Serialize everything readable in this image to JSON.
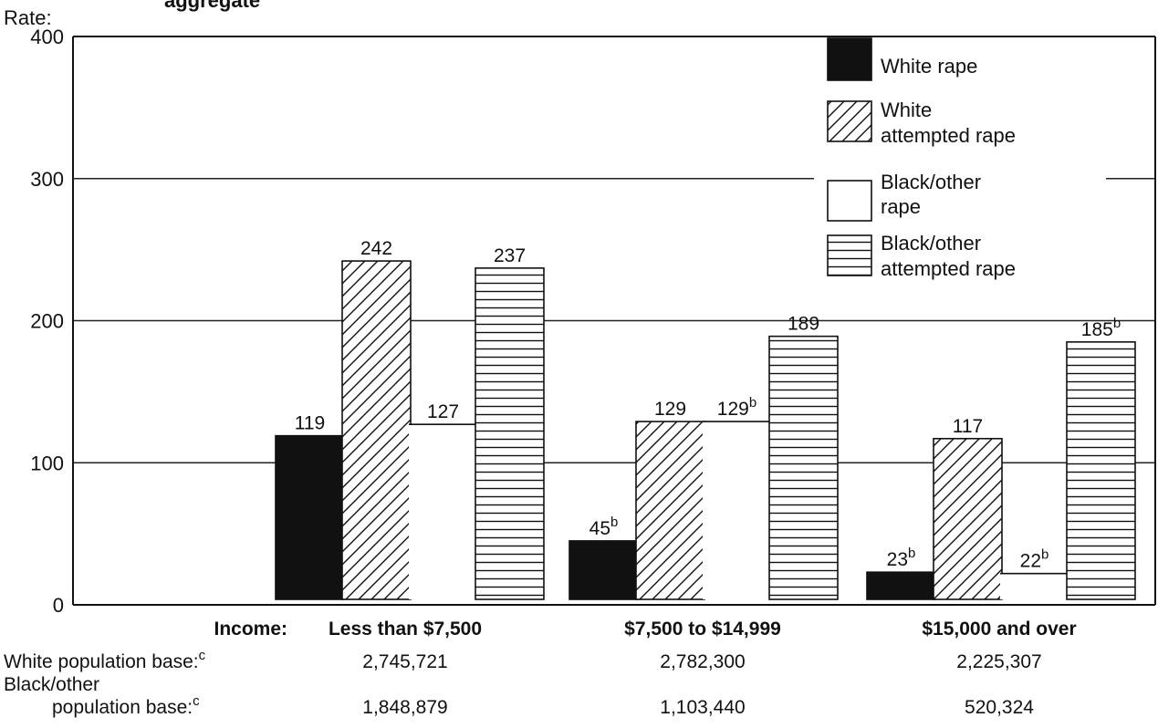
{
  "chart_data": {
    "type": "bar",
    "title_fragment": "aggregate",
    "ylabel": "Rate:",
    "ylim": [
      0,
      400
    ],
    "yticks": [
      "0",
      "100",
      "200",
      "300",
      "400"
    ],
    "grid": "horizontal",
    "legend_position": "top-right",
    "xlabel": "Income:",
    "categories": [
      "Less than $7,500",
      "$7,500 to $14,999",
      "$15,000 and over"
    ],
    "series": [
      {
        "name": "White rape",
        "pattern": "solid-black",
        "values": [
          119,
          45,
          23
        ],
        "labels": [
          "119",
          "45",
          "23"
        ],
        "notes": [
          "",
          "b",
          "b"
        ]
      },
      {
        "name": "White attempted rape",
        "pattern": "diagonal-hatch",
        "values": [
          242,
          129,
          117
        ],
        "labels": [
          "242",
          "129",
          "117"
        ],
        "notes": [
          "",
          "",
          ""
        ]
      },
      {
        "name": "Black/other rape",
        "pattern": "white",
        "values": [
          127,
          129,
          22
        ],
        "labels": [
          "127",
          "129",
          "22"
        ],
        "notes": [
          "",
          "b",
          "b"
        ]
      },
      {
        "name": "Black/other attempted rape",
        "pattern": "horizontal-lines",
        "values": [
          237,
          189,
          185
        ],
        "labels": [
          "237",
          "189",
          "185"
        ],
        "notes": [
          "",
          "",
          "b"
        ]
      }
    ],
    "legend": {
      "white_rape": [
        "White rape"
      ],
      "white_attempted": [
        "White",
        "attempted rape"
      ],
      "black_rape": [
        "Black/other",
        "rape"
      ],
      "black_attempted": [
        "Black/other",
        "attempted rape"
      ]
    },
    "population_base": {
      "white_label": "White population base:",
      "white_note": "c",
      "black_label_line1": "Black/other",
      "black_label_line2": "population base:",
      "black_note": "c",
      "white_values": [
        "2,745,721",
        "2,782,300",
        "2,225,307"
      ],
      "black_values": [
        "1,848,879",
        "1,103,440",
        "520,324"
      ]
    }
  }
}
